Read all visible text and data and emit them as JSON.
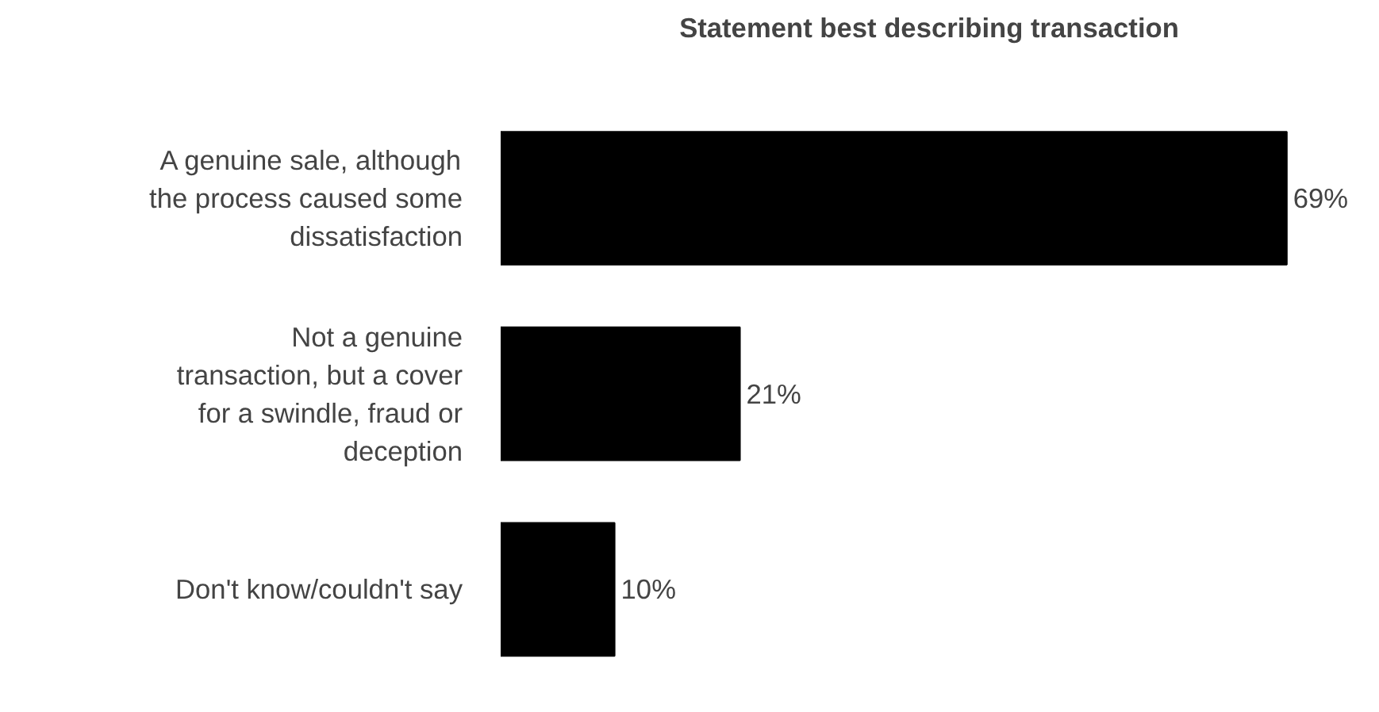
{
  "chart_data": {
    "type": "bar",
    "orientation": "horizontal",
    "title": "Statement best describing transaction",
    "categories": [
      "A genuine sale, although the process caused some dissatisfaction",
      "Not a genuine transaction, but a cover for a swindle, fraud or deception",
      "Don't know/couldn't say"
    ],
    "values": [
      69,
      21,
      10
    ],
    "color": "#000000",
    "value_labels": [
      "69%",
      "21%",
      "10%"
    ],
    "tick_labels": "y"
  }
}
